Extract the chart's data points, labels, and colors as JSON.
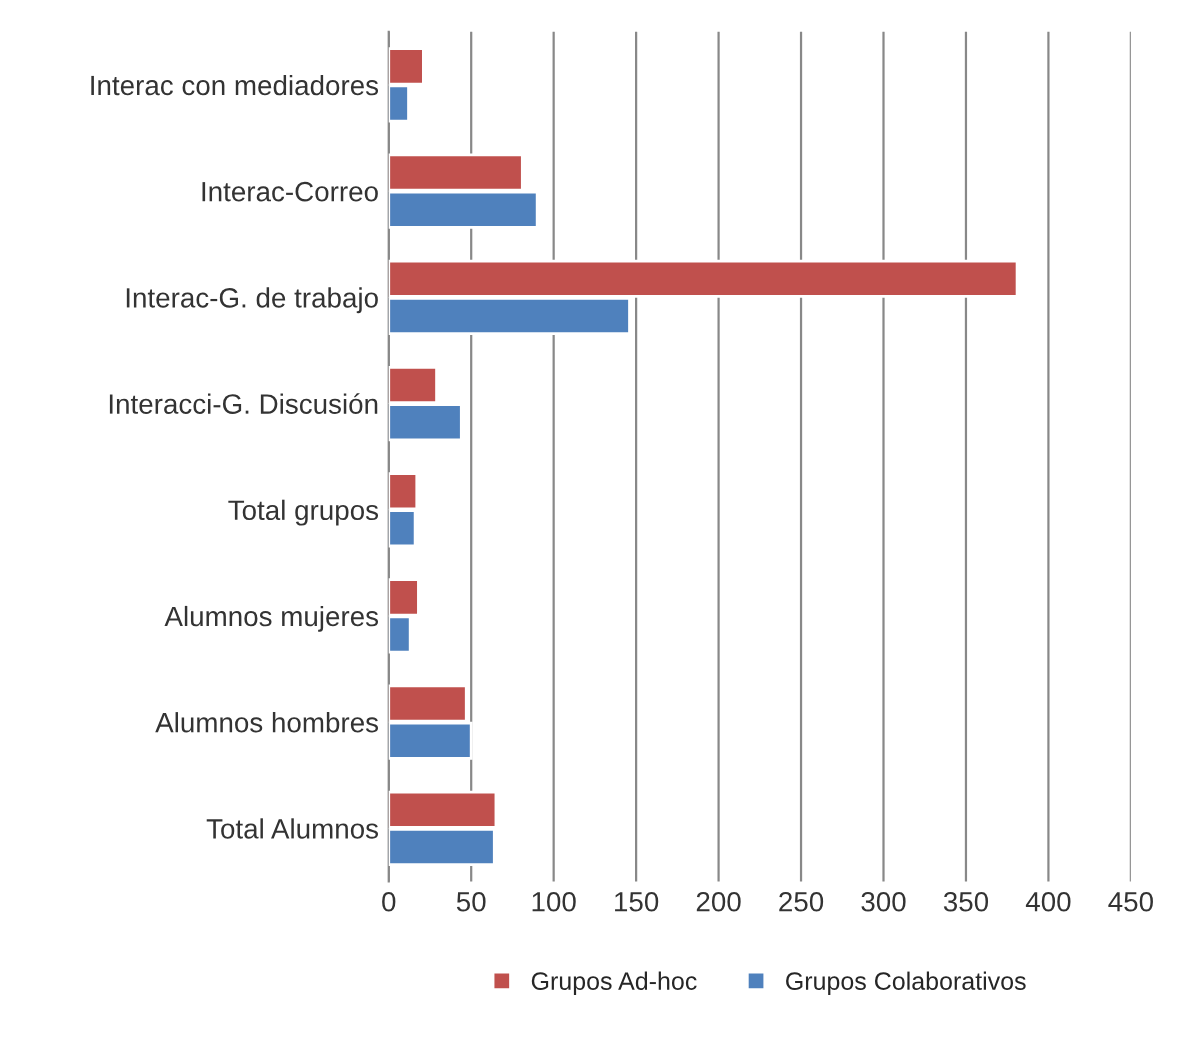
{
  "chart_data": {
    "type": "bar",
    "orientation": "horizontal",
    "categories": [
      "Interac con mediadores",
      "Interac-Correo",
      "Interac-G. de trabajo",
      "Interacci-G. Discusión",
      "Total grupos",
      "Alumnos mujeres",
      "Alumnos hombres",
      "Total Alumnos"
    ],
    "series": [
      {
        "name": "Grupos Ad-hoc",
        "color": "#c0504d",
        "values": [
          21,
          81,
          381,
          29,
          17,
          18,
          47,
          65
        ]
      },
      {
        "name": "Grupos Colaborativos",
        "color": "#4f81bd",
        "values": [
          12,
          90,
          146,
          44,
          16,
          13,
          50,
          64
        ]
      }
    ],
    "xlim": [
      0,
      450
    ],
    "xticks": [
      0,
      50,
      100,
      150,
      200,
      250,
      300,
      350,
      400,
      450
    ],
    "grid": "x",
    "legend": "bottom"
  }
}
